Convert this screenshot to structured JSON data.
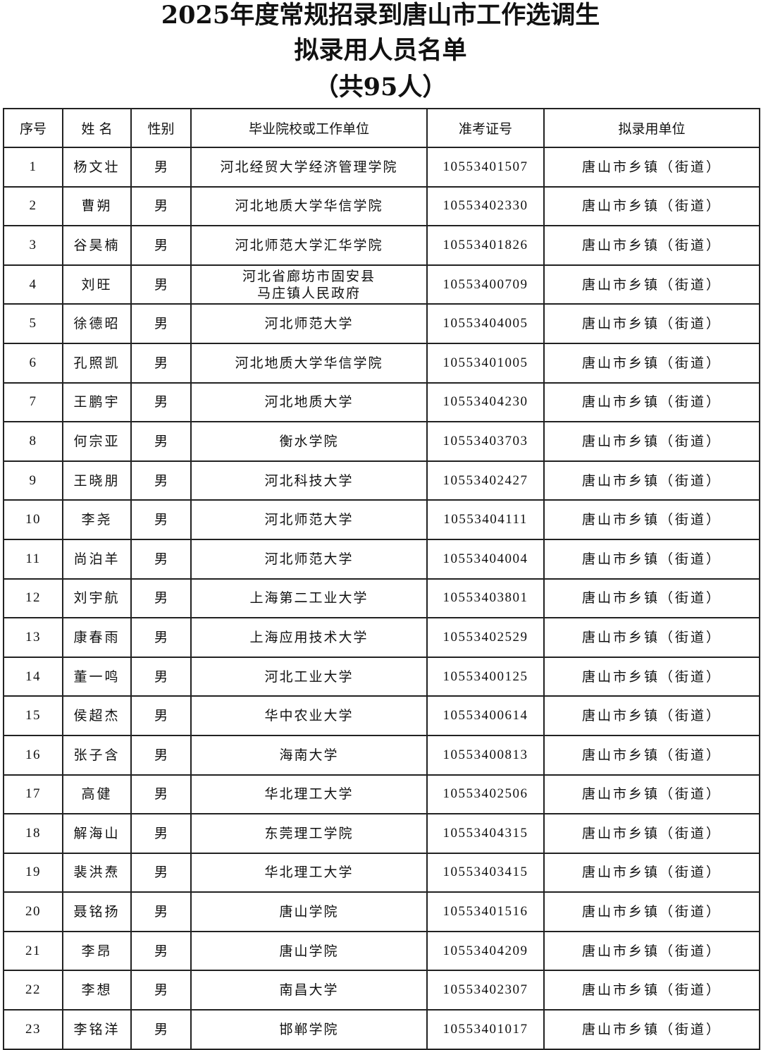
{
  "title": {
    "line1": "2025年度常规招录到唐山市工作选调生",
    "line2": "拟录用人员名单",
    "line3": "（共95人）"
  },
  "table": {
    "headers": [
      "序号",
      "姓 名",
      "性别",
      "毕业院校或工作单位",
      "准考证号",
      "拟录用单位"
    ],
    "rows": [
      {
        "no": "1",
        "name": "杨文壮",
        "gender": "男",
        "school": "河北经贸大学经济管理学院",
        "id": "10553401507",
        "unit": "唐山市乡镇（街道）"
      },
      {
        "no": "2",
        "name": "曹朔",
        "gender": "男",
        "school": "河北地质大学华信学院",
        "id": "10553402330",
        "unit": "唐山市乡镇（街道）"
      },
      {
        "no": "3",
        "name": "谷昊楠",
        "gender": "男",
        "school": "河北师范大学汇华学院",
        "id": "10553401826",
        "unit": "唐山市乡镇（街道）"
      },
      {
        "no": "4",
        "name": "刘旺",
        "gender": "男",
        "school": "河北省廊坊市固安县\n马庄镇人民政府",
        "id": "10553400709",
        "unit": "唐山市乡镇（街道）"
      },
      {
        "no": "5",
        "name": "徐德昭",
        "gender": "男",
        "school": "河北师范大学",
        "id": "10553404005",
        "unit": "唐山市乡镇（街道）"
      },
      {
        "no": "6",
        "name": "孔照凯",
        "gender": "男",
        "school": "河北地质大学华信学院",
        "id": "10553401005",
        "unit": "唐山市乡镇（街道）"
      },
      {
        "no": "7",
        "name": "王鹏宇",
        "gender": "男",
        "school": "河北地质大学",
        "id": "10553404230",
        "unit": "唐山市乡镇（街道）"
      },
      {
        "no": "8",
        "name": "何宗亚",
        "gender": "男",
        "school": "衡水学院",
        "id": "10553403703",
        "unit": "唐山市乡镇（街道）"
      },
      {
        "no": "9",
        "name": "王晓朋",
        "gender": "男",
        "school": "河北科技大学",
        "id": "10553402427",
        "unit": "唐山市乡镇（街道）"
      },
      {
        "no": "10",
        "name": "李尧",
        "gender": "男",
        "school": "河北师范大学",
        "id": "10553404111",
        "unit": "唐山市乡镇（街道）"
      },
      {
        "no": "11",
        "name": "尚泊羊",
        "gender": "男",
        "school": "河北师范大学",
        "id": "10553404004",
        "unit": "唐山市乡镇（街道）"
      },
      {
        "no": "12",
        "name": "刘宇航",
        "gender": "男",
        "school": "上海第二工业大学",
        "id": "10553403801",
        "unit": "唐山市乡镇（街道）"
      },
      {
        "no": "13",
        "name": "康春雨",
        "gender": "男",
        "school": "上海应用技术大学",
        "id": "10553402529",
        "unit": "唐山市乡镇（街道）"
      },
      {
        "no": "14",
        "name": "董一鸣",
        "gender": "男",
        "school": "河北工业大学",
        "id": "10553400125",
        "unit": "唐山市乡镇（街道）"
      },
      {
        "no": "15",
        "name": "侯超杰",
        "gender": "男",
        "school": "华中农业大学",
        "id": "10553400614",
        "unit": "唐山市乡镇（街道）"
      },
      {
        "no": "16",
        "name": "张子含",
        "gender": "男",
        "school": "海南大学",
        "id": "10553400813",
        "unit": "唐山市乡镇（街道）"
      },
      {
        "no": "17",
        "name": "高健",
        "gender": "男",
        "school": "华北理工大学",
        "id": "10553402506",
        "unit": "唐山市乡镇（街道）"
      },
      {
        "no": "18",
        "name": "解海山",
        "gender": "男",
        "school": "东莞理工学院",
        "id": "10553404315",
        "unit": "唐山市乡镇（街道）"
      },
      {
        "no": "19",
        "name": "裴洪焘",
        "gender": "男",
        "school": "华北理工大学",
        "id": "10553403415",
        "unit": "唐山市乡镇（街道）"
      },
      {
        "no": "20",
        "name": "聂铭扬",
        "gender": "男",
        "school": "唐山学院",
        "id": "10553401516",
        "unit": "唐山市乡镇（街道）"
      },
      {
        "no": "21",
        "name": "李昂",
        "gender": "男",
        "school": "唐山学院",
        "id": "10553404209",
        "unit": "唐山市乡镇（街道）"
      },
      {
        "no": "22",
        "name": "李想",
        "gender": "男",
        "school": "南昌大学",
        "id": "10553402307",
        "unit": "唐山市乡镇（街道）"
      },
      {
        "no": "23",
        "name": "李铭洋",
        "gender": "男",
        "school": "邯郸学院",
        "id": "10553401017",
        "unit": "唐山市乡镇（街道）"
      }
    ]
  }
}
